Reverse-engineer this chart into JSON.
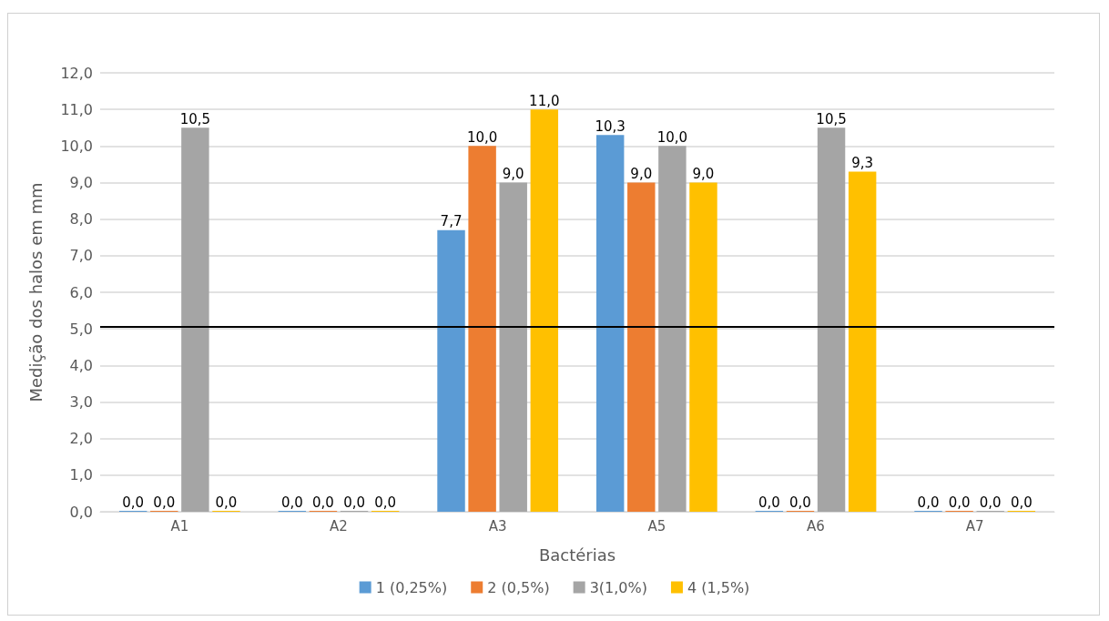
{
  "chart_data": {
    "type": "bar",
    "xlabel": "Bactérias",
    "ylabel": "Medição dos halos em mm",
    "categories": [
      "A1",
      "A2",
      "A3",
      "A5",
      "A6",
      "A7"
    ],
    "series": [
      {
        "name": "1 (0,25%)",
        "color": "#5b9bd5",
        "values": [
          0,
          0,
          7.7,
          10.3,
          0,
          0
        ],
        "value_labels": [
          "0,0",
          "0,0",
          "7,7",
          "10,3",
          "0,0",
          "0,0"
        ]
      },
      {
        "name": "2 (0,5%)",
        "color": "#ed7d31",
        "values": [
          0,
          0,
          10,
          9,
          0,
          0
        ],
        "value_labels": [
          "0,0",
          "0,0",
          "10,0",
          "9,0",
          "0,0",
          "0,0"
        ]
      },
      {
        "name": "3(1,0%)",
        "color": "#a5a5a5",
        "values": [
          10.5,
          0,
          9,
          10,
          10.5,
          0
        ],
        "value_labels": [
          "10,5",
          "0,0",
          "9,0",
          "10,0",
          "10,5",
          "0,0"
        ]
      },
      {
        "name": "4 (1,5%)",
        "color": "#ffc000",
        "values": [
          0,
          0,
          11,
          9,
          9.3,
          0
        ],
        "value_labels": [
          "0,0",
          "0,0",
          "11,0",
          "9,0",
          "9,3",
          "0,0"
        ]
      }
    ],
    "ylim": [
      0,
      12
    ],
    "yticks": [
      {
        "value": 0,
        "label": "0,0"
      },
      {
        "value": 1,
        "label": "1,0"
      },
      {
        "value": 2,
        "label": "2,0"
      },
      {
        "value": 3,
        "label": "3,0"
      },
      {
        "value": 4,
        "label": "4,0"
      },
      {
        "value": 5,
        "label": "5,0"
      },
      {
        "value": 6,
        "label": "6,0"
      },
      {
        "value": 7,
        "label": "7,0"
      },
      {
        "value": 8,
        "label": "8,0"
      },
      {
        "value": 9,
        "label": "9,0"
      },
      {
        "value": 10,
        "label": "10,0"
      },
      {
        "value": 11,
        "label": "11,0"
      },
      {
        "value": 12,
        "label": "12,0"
      }
    ],
    "ref_lines": [
      {
        "axis": "y",
        "value": 5.05,
        "color": "#000000"
      }
    ],
    "grid": "y",
    "legend": "bottom"
  }
}
